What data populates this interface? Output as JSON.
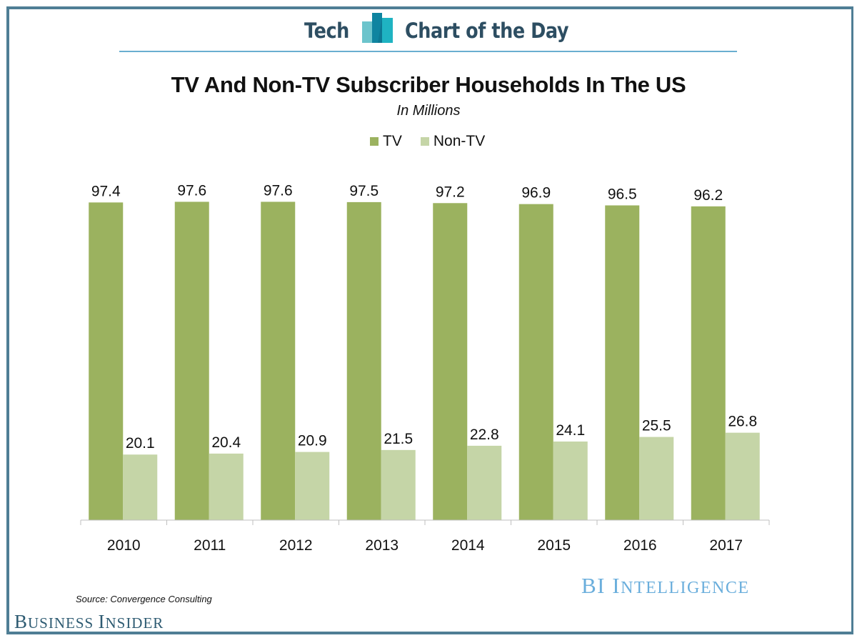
{
  "header": {
    "left_label": "Tech",
    "right_label": "Chart of the Day",
    "logo_icon": "bar-chart-icon"
  },
  "colors": {
    "tv": "#9bb25f",
    "non_tv": "#c5d5a7",
    "frame": "#4f7e95",
    "header_text": "#2d4e62",
    "header_line": "#6aaed0",
    "bi_intelligence": "#6aaedc"
  },
  "chart_data": {
    "type": "bar",
    "title": "TV And Non-TV Subscriber Households In The US",
    "subtitle": "In Millions",
    "xlabel": "",
    "ylabel": "",
    "categories": [
      "2010",
      "2011",
      "2012",
      "2013",
      "2014",
      "2015",
      "2016",
      "2017"
    ],
    "series": [
      {
        "name": "TV",
        "values": [
          97.4,
          97.6,
          97.6,
          97.5,
          97.2,
          96.9,
          96.5,
          96.2
        ]
      },
      {
        "name": "Non-TV",
        "values": [
          20.1,
          20.4,
          20.9,
          21.5,
          22.8,
          24.1,
          25.5,
          26.8
        ]
      }
    ],
    "data_labels": true,
    "ylim": [
      0,
      100
    ],
    "grid": false,
    "y_axis_visible": false,
    "legend_position": "top-center"
  },
  "footer": {
    "source": "Source: Convergence Consulting",
    "brand_left_first": "B",
    "brand_left_rest1": "USINESS ",
    "brand_left_second": "I",
    "brand_left_rest2": "NSIDER",
    "brand_right_first": "BI I",
    "brand_right_rest": "NTELLIGENCE"
  }
}
